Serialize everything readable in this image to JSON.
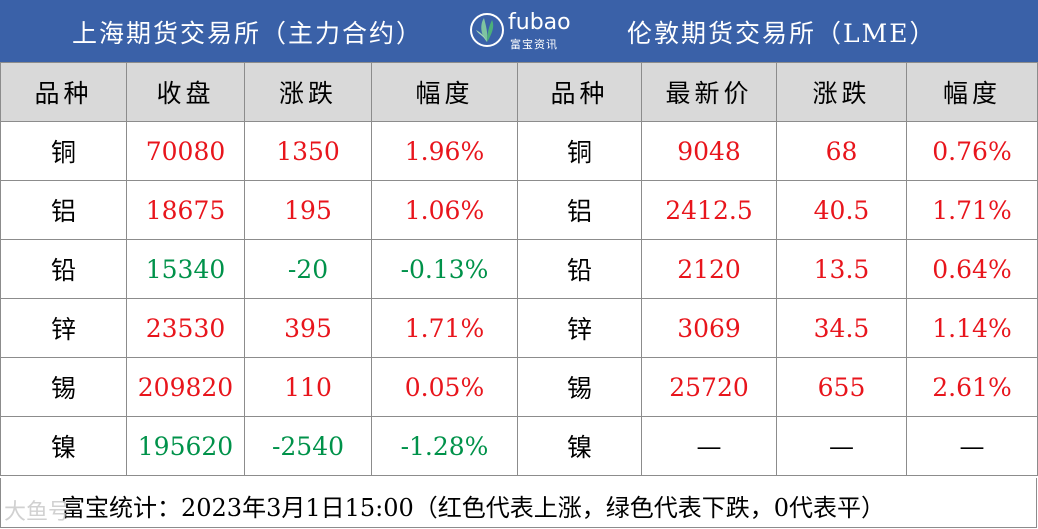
{
  "header": {
    "left_title": "上海期货交易所（主力合约）",
    "right_title": "伦敦期货交易所（LME）",
    "logo_word": "fubao",
    "logo_sub": "富宝资讯",
    "bg_color": "#3a61a8"
  },
  "columns": [
    "品种",
    "收盘",
    "涨跌",
    "幅度",
    "品种",
    "最新价",
    "涨跌",
    "幅度"
  ],
  "rows": [
    {
      "shfe_name": "铜",
      "close": "70080",
      "change": "1350",
      "pct": "1.96%",
      "shfe_dir": "up",
      "lme_name": "铜",
      "latest": "9048",
      "lme_change": "68",
      "lme_pct": "0.76%",
      "lme_dir": "up"
    },
    {
      "shfe_name": "铝",
      "close": "18675",
      "change": "195",
      "pct": "1.06%",
      "shfe_dir": "up",
      "lme_name": "铝",
      "latest": "2412.5",
      "lme_change": "40.5",
      "lme_pct": "1.71%",
      "lme_dir": "up"
    },
    {
      "shfe_name": "铅",
      "close": "15340",
      "change": "-20",
      "pct": "-0.13%",
      "shfe_dir": "down",
      "lme_name": "铅",
      "latest": "2120",
      "lme_change": "13.5",
      "lme_pct": "0.64%",
      "lme_dir": "up"
    },
    {
      "shfe_name": "锌",
      "close": "23530",
      "change": "395",
      "pct": "1.71%",
      "shfe_dir": "up",
      "lme_name": "锌",
      "latest": "3069",
      "lme_change": "34.5",
      "lme_pct": "1.14%",
      "lme_dir": "up"
    },
    {
      "shfe_name": "锡",
      "close": "209820",
      "change": "110",
      "pct": "0.05%",
      "shfe_dir": "up",
      "lme_name": "锡",
      "latest": "25720",
      "lme_change": "655",
      "lme_pct": "2.61%",
      "lme_dir": "up"
    },
    {
      "shfe_name": "镍",
      "close": "195620",
      "change": "-2540",
      "pct": "-1.28%",
      "shfe_dir": "down",
      "lme_name": "镍",
      "latest": "—",
      "lme_change": "—",
      "lme_pct": "—",
      "lme_dir": "flat"
    }
  ],
  "footer": {
    "text": "富宝统计：2023年3月1日15:00（红色代表上涨，绿色代表下跌，0代表平）"
  },
  "watermark": "大鱼号",
  "colors": {
    "up": "#e8151c",
    "down": "#00924a",
    "header_row": "#d9d9d9"
  }
}
